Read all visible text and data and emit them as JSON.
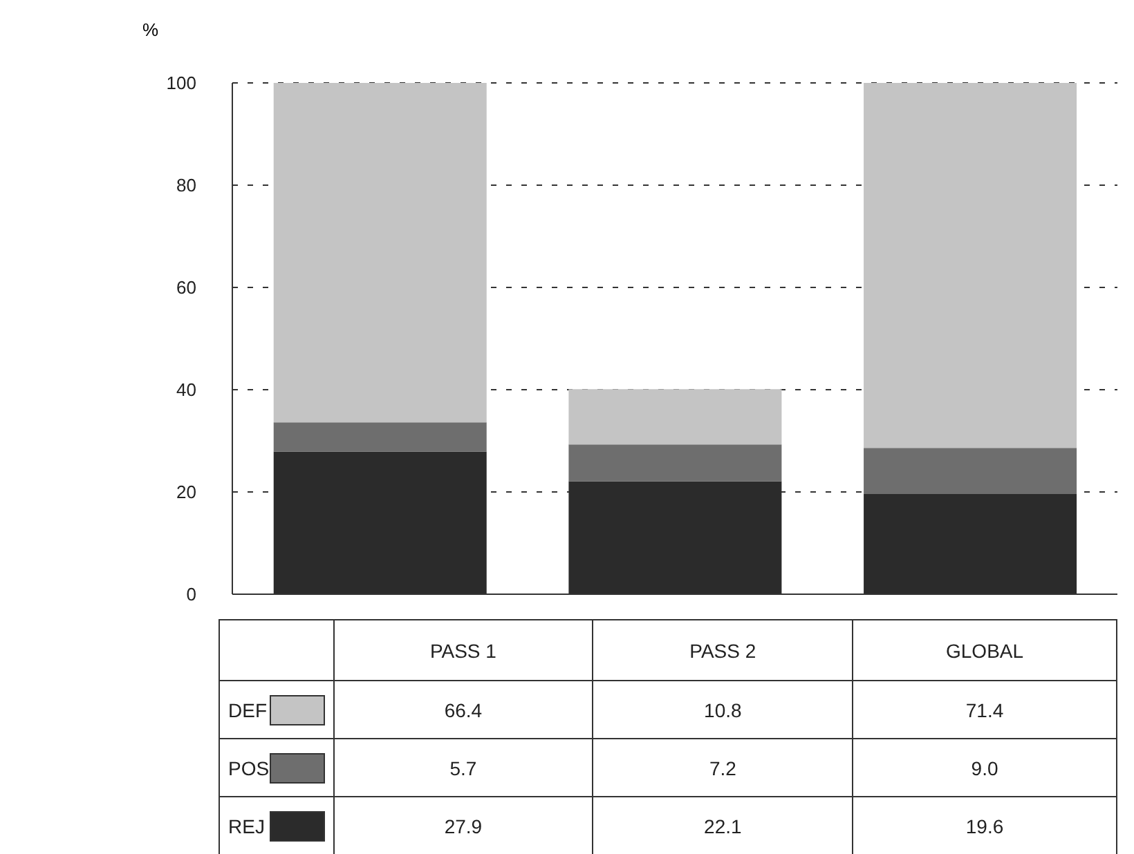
{
  "chart_data": {
    "type": "bar",
    "stacked": true,
    "ylabel": "%",
    "categories": [
      "PASS 1",
      "PASS 2",
      "GLOBAL"
    ],
    "series": [
      {
        "name": "REJ",
        "color": "#2b2b2b",
        "values": [
          27.9,
          22.1,
          19.6
        ],
        "value_labels": [
          "27.9",
          "22.1",
          "19.6"
        ]
      },
      {
        "name": "POS",
        "color": "#6e6e6e",
        "values": [
          5.7,
          7.2,
          9.0
        ],
        "value_labels": [
          "5.7",
          "7.2",
          "9.0"
        ]
      },
      {
        "name": "DEF",
        "color": "#c4c4c4",
        "values": [
          66.4,
          10.8,
          71.4
        ],
        "value_labels": [
          "66.4",
          "10.8",
          "71.4"
        ]
      }
    ],
    "ylim": [
      0,
      100
    ],
    "yticks": [
      0,
      20,
      40,
      60,
      80,
      100
    ],
    "grid": "y",
    "legend": "bottom"
  }
}
